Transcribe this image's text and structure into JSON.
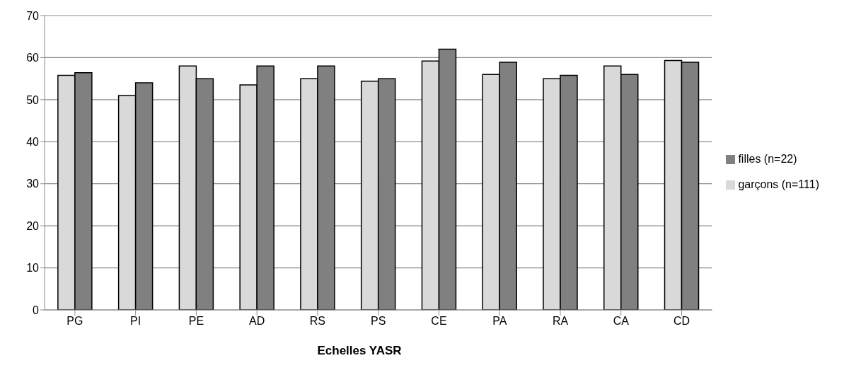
{
  "chart_data": {
    "type": "bar",
    "xlabel": "Echelles YASR",
    "categories": [
      "PG",
      "PI",
      "PE",
      "AD",
      "RS",
      "PS",
      "CE",
      "PA",
      "RA",
      "CA",
      "CD"
    ],
    "series": [
      {
        "name": "garçons (n=111)",
        "color": "#d9d9d9",
        "values": [
          55.8,
          51.0,
          58.0,
          53.5,
          55.0,
          54.4,
          59.2,
          56.0,
          55.0,
          58.0,
          59.3
        ]
      },
      {
        "name": "filles (n=22)",
        "color": "#808080",
        "values": [
          56.4,
          54.0,
          55.0,
          58.0,
          58.0,
          55.0,
          62.0,
          58.9,
          55.8,
          56.0,
          58.9
        ]
      }
    ],
    "ylim": [
      0,
      70
    ],
    "yticks": [
      0,
      10,
      20,
      30,
      40,
      50,
      60,
      70
    ],
    "grid": "y",
    "legend": "right"
  }
}
